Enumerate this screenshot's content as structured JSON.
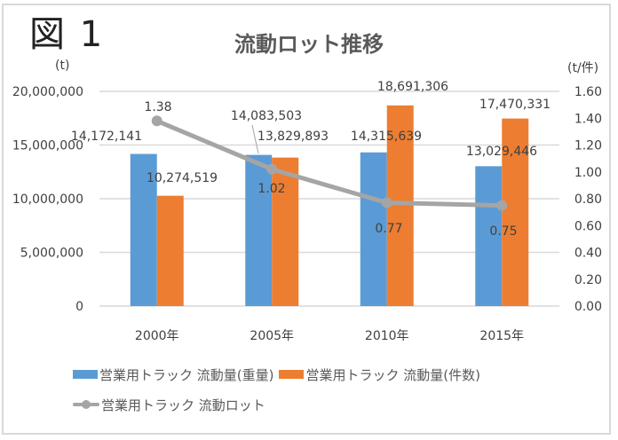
{
  "figure_label": "図 1",
  "chart_data": {
    "type": "bar+line",
    "title": "流動ロット推移",
    "categories": [
      "2000年",
      "2005年",
      "2010年",
      "2015年"
    ],
    "y_left": {
      "label": "(t)",
      "range": [
        0,
        20000000
      ],
      "ticks": [
        "0",
        "5,000,000",
        "10,000,000",
        "15,000,000",
        "20,000,000"
      ],
      "tick_values": [
        0,
        5000000,
        10000000,
        15000000,
        20000000
      ]
    },
    "y_right": {
      "label": "(t/件)",
      "range": [
        0,
        1.6
      ],
      "ticks": [
        "0.00",
        "0.20",
        "0.40",
        "0.60",
        "0.80",
        "1.00",
        "1.20",
        "1.40",
        "1.60"
      ],
      "tick_values": [
        0,
        0.2,
        0.4,
        0.6,
        0.8,
        1.0,
        1.2,
        1.4,
        1.6
      ]
    },
    "grid": true,
    "legend_position": "bottom",
    "series": [
      {
        "name": "営業用トラック 流動量(重量)",
        "type": "bar",
        "axis": "left",
        "color": "#5b9bd5",
        "values": [
          14172141,
          14083503,
          14315639,
          13029446
        ],
        "labels": [
          "14,172,141",
          "14,083,503",
          "14,315,639",
          "13,029,446"
        ]
      },
      {
        "name": "営業用トラック 流動量(件数)",
        "type": "bar",
        "axis": "left",
        "color": "#ed7d31",
        "values": [
          10274519,
          13829893,
          18691306,
          17470331
        ],
        "labels": [
          "10,274,519",
          "13,829,893",
          "18,691,306",
          "17,470,331"
        ]
      },
      {
        "name": "営業用トラック 流動ロット",
        "type": "line",
        "axis": "right",
        "color": "#a5a5a5",
        "values": [
          1.38,
          1.02,
          0.77,
          0.75
        ],
        "labels": [
          "1.38",
          "1.02",
          "0.77",
          "0.75"
        ]
      }
    ]
  }
}
